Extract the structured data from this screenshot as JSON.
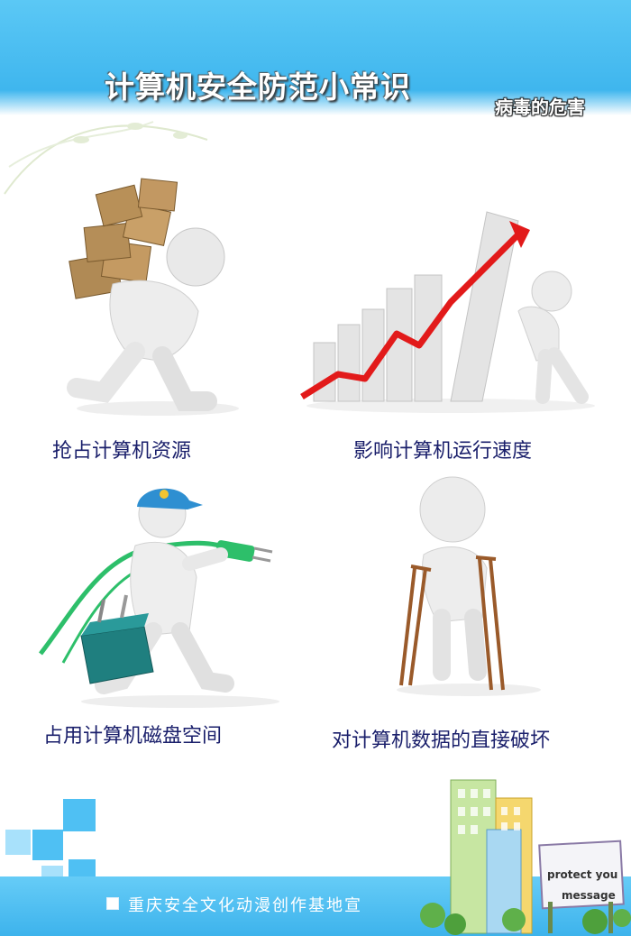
{
  "header": {
    "title": "计算机安全防范小常识",
    "section": "病毒的危害"
  },
  "panels": [
    {
      "caption": "抢占计算机资源"
    },
    {
      "caption": "影响计算机运行速度"
    },
    {
      "caption": "占用计算机磁盘空间"
    },
    {
      "caption": "对计算机数据的直接破坏"
    }
  ],
  "footer": {
    "text": "重庆安全文化动漫创作基地宣"
  },
  "sign": {
    "line1": "protect you",
    "line2": "message"
  },
  "colors": {
    "header_blue": "#4ec0f3",
    "caption_navy": "#1a1f6b",
    "arrow_red": "#e21a1a",
    "plug_green": "#2dbf6a",
    "cap_blue": "#2e8fd1"
  }
}
